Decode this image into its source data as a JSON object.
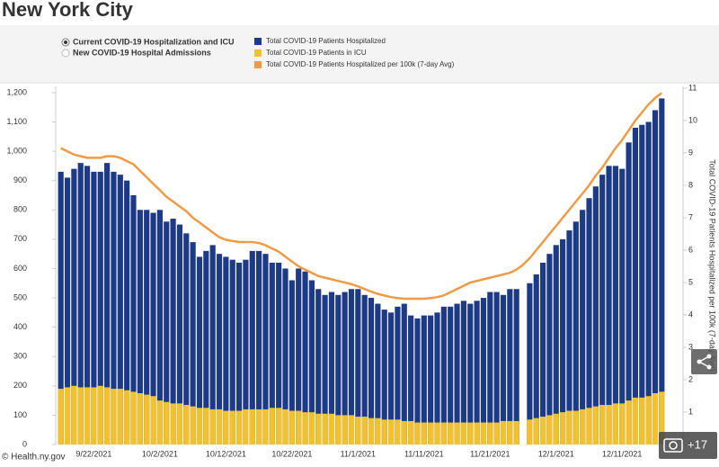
{
  "chart_data": {
    "type": "bar",
    "title": "New York City",
    "radio_options": [
      {
        "label": "Current COVID-19 Hospitalization and ICU",
        "selected": true
      },
      {
        "label": "New COVID-19 Hospital Admissions",
        "selected": false
      }
    ],
    "categories": [
      null,
      null,
      null,
      null,
      null,
      "9/22/2021",
      null,
      null,
      null,
      null,
      null,
      null,
      null,
      null,
      null,
      "10/2/2021",
      null,
      null,
      null,
      null,
      null,
      null,
      null,
      null,
      null,
      "10/12/2021",
      null,
      null,
      null,
      null,
      null,
      null,
      null,
      null,
      null,
      "10/22/2021",
      null,
      null,
      null,
      null,
      null,
      null,
      null,
      null,
      null,
      "11/1/2021",
      null,
      null,
      null,
      null,
      null,
      null,
      null,
      null,
      null,
      "11/11/2021",
      null,
      null,
      null,
      null,
      null,
      null,
      null,
      null,
      null,
      "11/21/2021",
      null,
      null,
      null,
      null,
      null,
      null,
      null,
      null,
      null,
      "12/1/2021",
      null,
      null,
      null,
      null,
      null,
      null,
      null,
      null,
      null,
      "12/11/2021",
      null,
      null,
      null,
      null,
      null,
      null
    ],
    "series": [
      {
        "name": "Total COVID-19 Patients Hospitalized",
        "type": "bar",
        "color": "#1c3a86",
        "values": [
          930,
          910,
          940,
          960,
          950,
          930,
          930,
          960,
          930,
          920,
          900,
          850,
          800,
          800,
          790,
          800,
          760,
          770,
          750,
          720,
          690,
          640,
          660,
          680,
          650,
          640,
          630,
          620,
          630,
          660,
          660,
          650,
          620,
          620,
          600,
          560,
          600,
          590,
          560,
          530,
          510,
          520,
          510,
          520,
          530,
          530,
          510,
          500,
          480,
          460,
          450,
          470,
          480,
          440,
          430,
          440,
          440,
          450,
          470,
          470,
          480,
          490,
          480,
          490,
          500,
          520,
          520,
          510,
          530,
          530,
          null,
          550,
          580,
          620,
          650,
          680,
          700,
          730,
          760,
          800,
          840,
          880,
          920,
          950,
          950,
          940,
          1030,
          1080,
          1090,
          1100,
          1140,
          1180
        ]
      },
      {
        "name": "Total COVID-19 Patients in ICU",
        "type": "bar",
        "color": "#f2c22e",
        "values": [
          190,
          195,
          200,
          195,
          195,
          195,
          200,
          195,
          190,
          190,
          185,
          180,
          175,
          170,
          165,
          150,
          145,
          140,
          140,
          135,
          130,
          125,
          125,
          120,
          120,
          115,
          115,
          115,
          120,
          120,
          120,
          120,
          125,
          125,
          120,
          115,
          115,
          110,
          110,
          105,
          105,
          105,
          100,
          100,
          100,
          95,
          95,
          90,
          90,
          85,
          85,
          85,
          80,
          80,
          75,
          75,
          75,
          75,
          75,
          75,
          75,
          75,
          75,
          75,
          75,
          75,
          75,
          80,
          80,
          80,
          null,
          85,
          90,
          95,
          100,
          105,
          110,
          115,
          115,
          120,
          125,
          130,
          135,
          135,
          140,
          140,
          150,
          160,
          160,
          165,
          175,
          180
        ]
      },
      {
        "name": "Total COVID-19 Patients Hospitalized per 100k (7-day Avg)",
        "type": "line",
        "axis": "y2",
        "color": "#ef9a45",
        "values": [
          9.15,
          9.05,
          8.95,
          8.9,
          8.85,
          8.85,
          8.85,
          8.9,
          8.9,
          8.85,
          8.75,
          8.65,
          8.45,
          8.25,
          8.05,
          7.85,
          7.65,
          7.5,
          7.35,
          7.2,
          7.0,
          6.85,
          6.7,
          6.55,
          6.4,
          6.32,
          6.28,
          6.25,
          6.25,
          6.25,
          6.22,
          6.15,
          6.05,
          5.95,
          5.8,
          5.65,
          5.5,
          5.4,
          5.3,
          5.2,
          5.15,
          5.1,
          5.05,
          5.0,
          4.95,
          4.88,
          4.8,
          4.72,
          4.65,
          4.6,
          4.55,
          4.52,
          4.5,
          4.5,
          4.5,
          4.5,
          4.52,
          4.55,
          4.6,
          4.7,
          4.8,
          4.9,
          5.0,
          5.05,
          5.1,
          5.15,
          5.2,
          5.25,
          5.3,
          5.4,
          5.55,
          5.75,
          6.0,
          6.25,
          6.5,
          6.75,
          7.0,
          7.25,
          7.5,
          7.75,
          8.0,
          8.3,
          8.55,
          8.85,
          9.15,
          9.4,
          9.7,
          10.0,
          10.25,
          10.5,
          10.7,
          10.85
        ]
      }
    ],
    "ylim": [
      0,
      1215
    ],
    "yticks": [
      0,
      100,
      200,
      300,
      400,
      500,
      600,
      700,
      800,
      900,
      {
        "value": 1000,
        "label": "1,000"
      },
      {
        "value": 1100,
        "label": "1,100"
      },
      {
        "value": 1200,
        "label": "1,200"
      }
    ],
    "y2lim": [
      0,
      11
    ],
    "y2ticks": [
      0,
      1,
      2,
      3,
      4,
      5,
      6,
      7,
      8,
      9,
      10,
      11
    ],
    "y2label": "Total COVID-19 Patients Hospitalized per 100k (7-day Avg)",
    "grid": false,
    "source": "© Health.ny.gov"
  },
  "overlay": {
    "photo_count": "+17"
  }
}
